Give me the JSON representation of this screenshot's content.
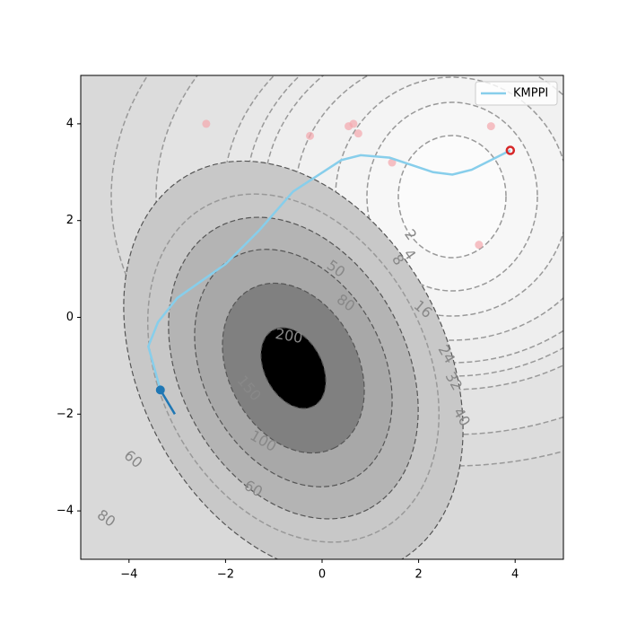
{
  "chart_data": {
    "type": "contour",
    "xlim": [
      -5,
      5
    ],
    "ylim": [
      -5,
      5
    ],
    "xticks": [
      {
        "value": -4,
        "label": "−4"
      },
      {
        "value": -2,
        "label": "−2"
      },
      0,
      2,
      4
    ],
    "yticks": [
      {
        "value": -4,
        "label": "−4"
      },
      {
        "value": -2,
        "label": "−2"
      },
      0,
      2,
      4
    ],
    "contour_labels": [
      2,
      4,
      8,
      16,
      24,
      32,
      40,
      50,
      80,
      200,
      150,
      100,
      60,
      60,
      80
    ],
    "series": [
      {
        "name": "KMPPI",
        "color": "#87ceeb",
        "x": [
          -3.35,
          -3.6,
          -3.4,
          -3.0,
          -2.0,
          -1.3,
          -0.6,
          0.4,
          0.8,
          1.4,
          2.3,
          2.7,
          3.1,
          3.6,
          3.9
        ],
        "y": [
          -1.5,
          -0.6,
          -0.1,
          0.4,
          1.1,
          1.8,
          2.6,
          3.25,
          3.35,
          3.3,
          3.0,
          2.95,
          3.05,
          3.3,
          3.45
        ]
      }
    ],
    "start": {
      "x": -3.35,
      "y": -1.5,
      "color": "#1f77b4",
      "heading_x": [
        -3.35,
        -3.05
      ],
      "heading_y": [
        -1.5,
        -2.0
      ]
    },
    "goal": {
      "x": 3.9,
      "y": 3.45,
      "color": "#d62728"
    },
    "samples": {
      "color": "#f4a6ad",
      "x": [
        -2.4,
        -0.25,
        0.55,
        0.65,
        0.75,
        1.45,
        3.5,
        3.25
      ],
      "y": [
        4.0,
        3.75,
        3.95,
        4.0,
        3.8,
        3.2,
        3.95,
        1.5
      ]
    },
    "legend": "upper right"
  }
}
